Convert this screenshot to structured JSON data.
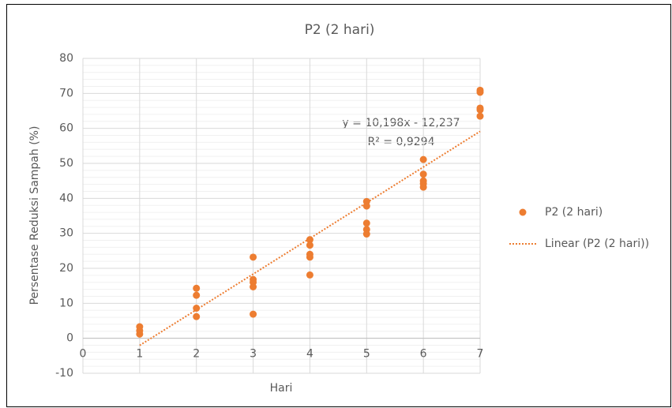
{
  "chart_data": {
    "type": "scatter",
    "title": "P2 (2 hari)",
    "x_label": "Hari",
    "y_label": "Persentase Reduksi Sampah (%)",
    "xlim": [
      0,
      7
    ],
    "ylim": [
      -10,
      80
    ],
    "xticks": [
      0,
      1,
      2,
      3,
      4,
      5,
      6,
      7
    ],
    "yticks": [
      -10,
      0,
      10,
      20,
      30,
      40,
      50,
      60,
      70,
      80
    ],
    "grid": true,
    "minor_grid_divisions": 5,
    "legend": "right",
    "series": [
      {
        "name": "P2 (2 hari)",
        "color": "#ed7d31",
        "x": [
          1,
          1,
          1,
          2,
          2,
          2,
          2,
          3,
          3,
          3,
          3,
          3,
          4,
          4,
          4,
          4,
          4,
          5,
          5,
          5,
          5,
          5,
          6,
          6,
          6,
          6,
          6,
          7,
          7,
          7,
          7,
          7
        ],
        "values": [
          3.3,
          2.2,
          1.2,
          14.3,
          12.3,
          8.6,
          6.2,
          23.2,
          16.8,
          16.0,
          14.7,
          6.9,
          28.2,
          26.6,
          24.0,
          23.2,
          18.1,
          39.1,
          37.8,
          32.9,
          31.1,
          29.8,
          51.1,
          46.9,
          45.0,
          44.2,
          43.2,
          70.9,
          70.3,
          65.8,
          65.3,
          63.5
        ]
      }
    ],
    "trendline": {
      "name": "Linear (P2 (2 hari))",
      "color": "#ed7d31",
      "slope": 10.198,
      "intercept": -12.237,
      "xrange": [
        1,
        7
      ],
      "equation": "y = 10,198x - 12,237",
      "r_squared": "R² = 0,9294"
    }
  }
}
